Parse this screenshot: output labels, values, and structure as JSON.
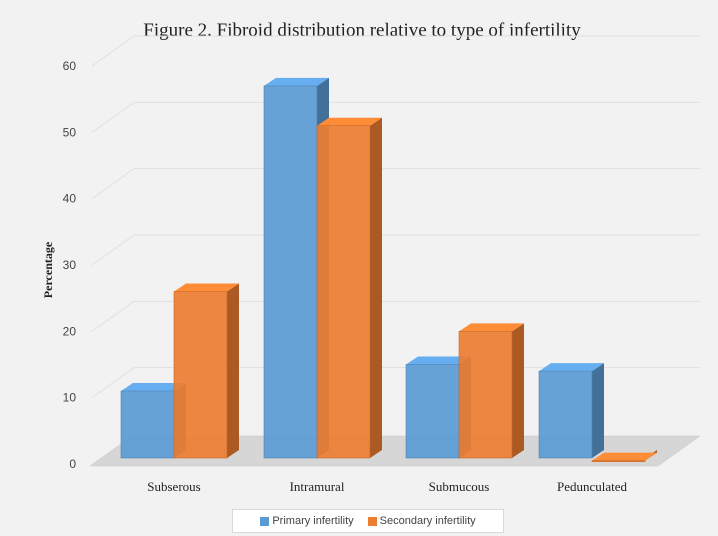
{
  "chart_data": {
    "type": "bar",
    "title": "Figure 2.  Fibroid distribution relative  to type of infertility",
    "xlabel": "",
    "ylabel": "Percentage",
    "categories": [
      "Subserous",
      "Intramural",
      "Submucous",
      "Pedunculated"
    ],
    "series": [
      {
        "name": "Primary infertility",
        "color": "#5b9bd5",
        "values": [
          11,
          57,
          15,
          14
        ]
      },
      {
        "name": "Secondary infertility",
        "color": "#ed7d31",
        "values": [
          26,
          51,
          20,
          0.5
        ]
      }
    ],
    "ylim": [
      0,
      60
    ],
    "yticks": [
      "0",
      "10",
      "20",
      "30",
      "40",
      "50",
      "60"
    ],
    "grid": true,
    "legend_position": "bottom",
    "style": "3d-clustered-column"
  }
}
